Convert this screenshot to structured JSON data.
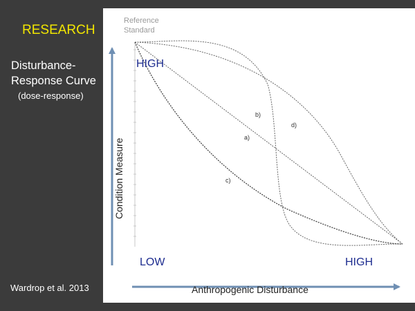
{
  "slide": {
    "title": "RESEARCH",
    "subtitle_line1": "Disturbance-",
    "subtitle_line2": "Response Curve",
    "subtitle_note": "(dose-response)",
    "citation": "Wardrop et al. 2013"
  },
  "figure": {
    "reference_line1": "Reference",
    "reference_line2": "Standard",
    "y_axis_label": "Condition Measure",
    "x_axis_label": "Anthropogenic Disturbance",
    "y_high": "HIGH",
    "y_low": "LOW",
    "x_high": "HIGH",
    "curve_labels": {
      "a": "a)",
      "b": "b)",
      "c": "c)",
      "d": "d)"
    }
  },
  "colors": {
    "background": "#3b3b3b",
    "title": "#f2e600",
    "level_labels": "#1d2c8f",
    "axis_arrows": "#6f8fb3"
  }
}
